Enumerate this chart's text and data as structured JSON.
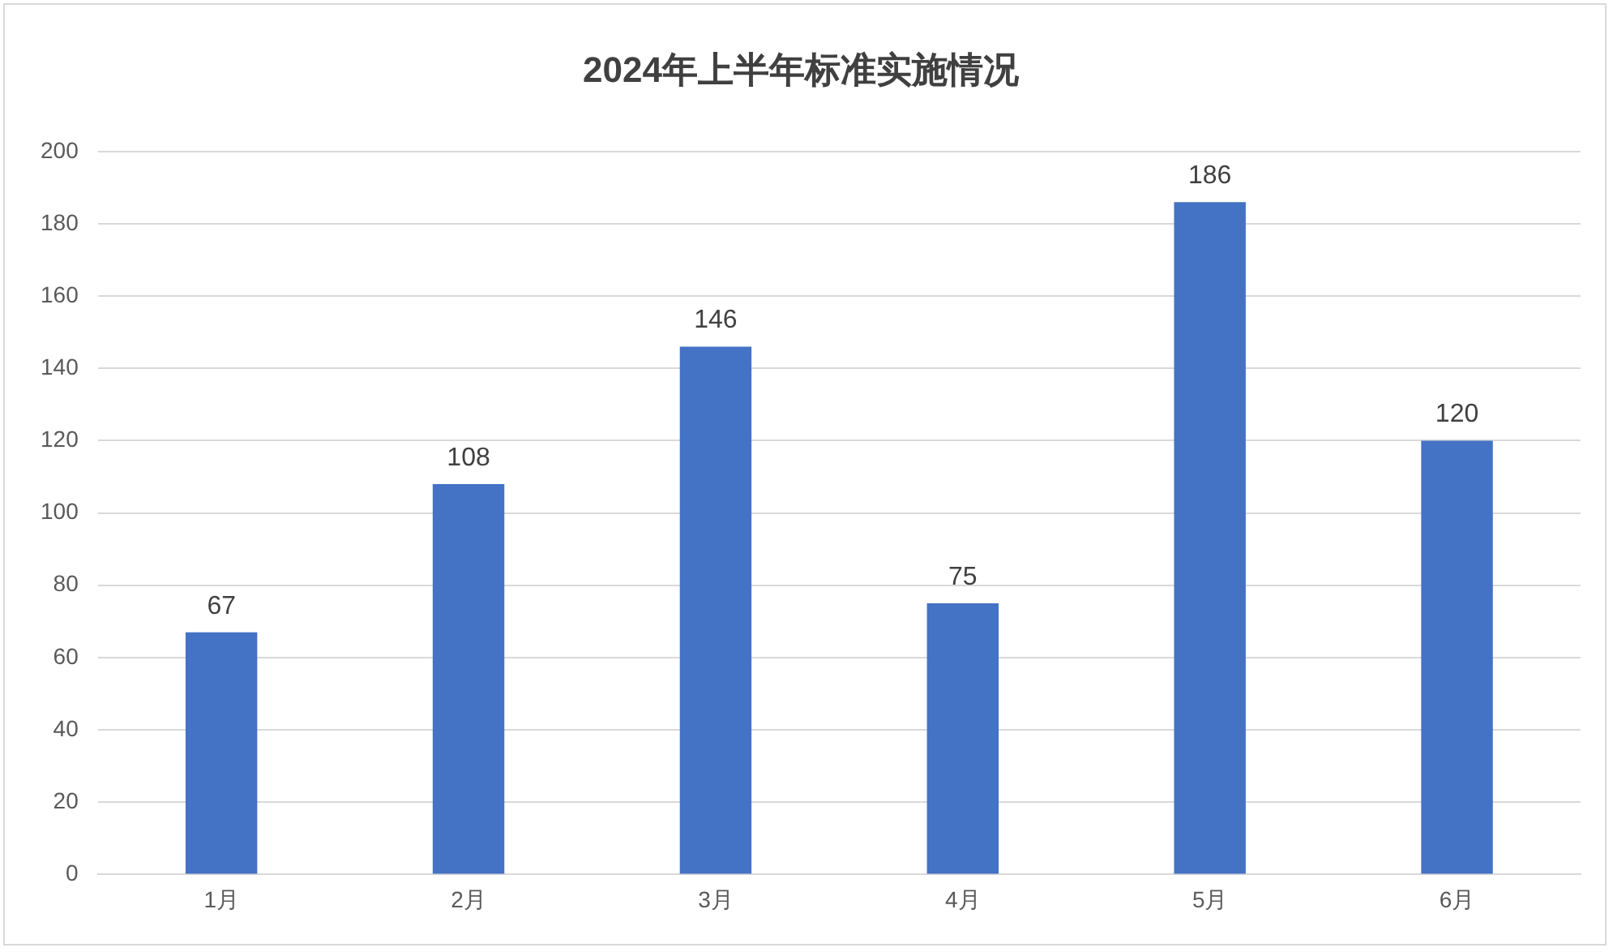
{
  "chart_data": {
    "type": "bar",
    "title": "2024年上半年标准实施情况",
    "categories": [
      "1月",
      "2月",
      "3月",
      "4月",
      "5月",
      "6月"
    ],
    "values": [
      67,
      108,
      146,
      75,
      186,
      120
    ],
    "color": "#4472c4",
    "ylim": [
      0,
      200
    ],
    "yticks": [
      0,
      20,
      40,
      60,
      80,
      100,
      120,
      140,
      160,
      180,
      200
    ],
    "grid": "y",
    "data_labels": true
  }
}
